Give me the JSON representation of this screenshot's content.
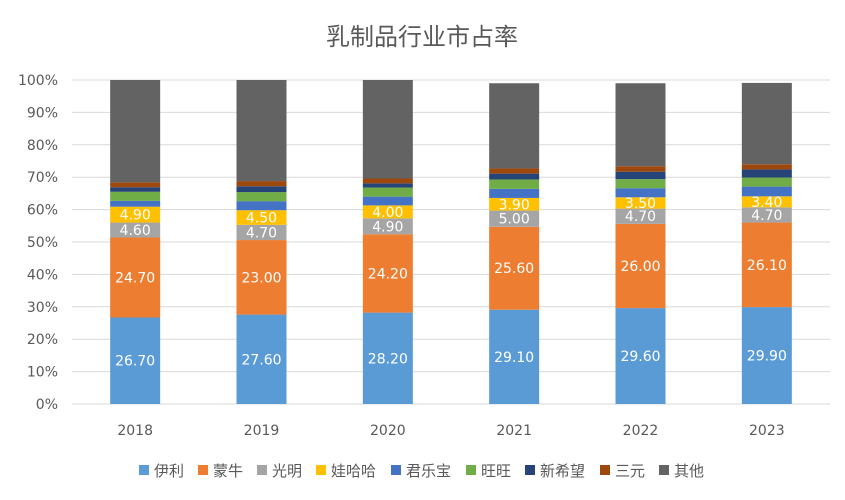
{
  "chart_data": {
    "type": "bar",
    "stacked": true,
    "title": "乳制品行业市占率",
    "categories": [
      "2018",
      "2019",
      "2020",
      "2021",
      "2022",
      "2023"
    ],
    "y_tick_labels": [
      "0%",
      "10%",
      "20%",
      "30%",
      "40%",
      "50%",
      "60%",
      "70%",
      "80%",
      "90%",
      "100%"
    ],
    "ylim": [
      0,
      100
    ],
    "grid": true,
    "legend_position": "bottom",
    "series": [
      {
        "name": "伊利",
        "color": "#5b9bd5",
        "values": [
          26.7,
          27.6,
          28.2,
          29.1,
          29.6,
          29.9
        ],
        "labels": [
          "26.70",
          "27.60",
          "28.20",
          "29.10",
          "29.60",
          "29.90"
        ]
      },
      {
        "name": "蒙牛",
        "color": "#ed7d31",
        "values": [
          24.7,
          23.0,
          24.2,
          25.6,
          26.0,
          26.1
        ],
        "labels": [
          "24.70",
          "23.00",
          "24.20",
          "25.60",
          "26.00",
          "26.10"
        ]
      },
      {
        "name": "光明",
        "color": "#a5a5a5",
        "values": [
          4.6,
          4.7,
          4.9,
          5.0,
          4.7,
          4.7
        ],
        "labels": [
          "4.60",
          "4.70",
          "4.90",
          "5.00",
          "4.70",
          "4.70"
        ]
      },
      {
        "name": "娃哈哈",
        "color": "#ffc000",
        "values": [
          4.9,
          4.5,
          4.0,
          3.9,
          3.5,
          3.4
        ],
        "labels": [
          "4.90",
          "4.50",
          "4.00",
          "3.90",
          "3.50",
          "3.40"
        ]
      },
      {
        "name": "君乐宝",
        "color": "#4472c4",
        "values": [
          1.8,
          2.8,
          2.7,
          2.8,
          2.8,
          3.0
        ]
      },
      {
        "name": "旺旺",
        "color": "#70ad47",
        "values": [
          2.8,
          2.8,
          2.8,
          2.9,
          2.8,
          2.8
        ]
      },
      {
        "name": "新希望",
        "color": "#264478",
        "values": [
          1.4,
          1.8,
          1.3,
          1.8,
          2.3,
          2.5
        ]
      },
      {
        "name": "三元",
        "color": "#9e480e",
        "values": [
          1.5,
          1.6,
          1.5,
          1.6,
          1.7,
          1.6
        ]
      },
      {
        "name": "其他",
        "color": "#636363",
        "values": [
          31.6,
          31.2,
          30.4,
          26.3,
          25.6,
          25.1
        ]
      }
    ]
  }
}
